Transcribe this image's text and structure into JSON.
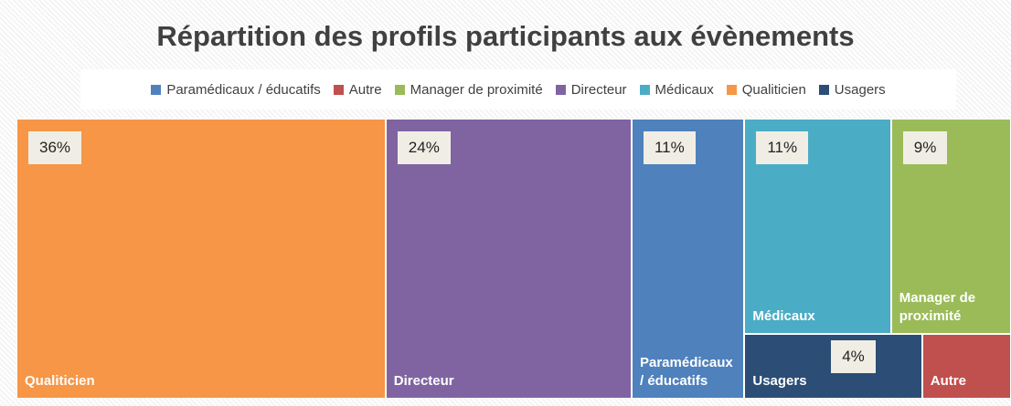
{
  "chart_data": {
    "type": "treemap",
    "title": "Répartition des profils participants aux évènements",
    "categories": [
      "Paramédicaux / éducatifs",
      "Autre",
      "Manager de proximité",
      "Directeur",
      "Médicaux",
      "Qualiticien",
      "Usagers"
    ],
    "values": [
      11,
      2,
      9,
      24,
      11,
      36,
      4
    ],
    "value_labels": [
      "11%",
      null,
      "9%",
      "24%",
      "11%",
      "36%",
      "4%"
    ],
    "colors": [
      "#4f81bd",
      "#c0504d",
      "#9bbb59",
      "#8064a2",
      "#4bacc6",
      "#f79646",
      "#2c4d75"
    ],
    "legend": "top"
  }
}
